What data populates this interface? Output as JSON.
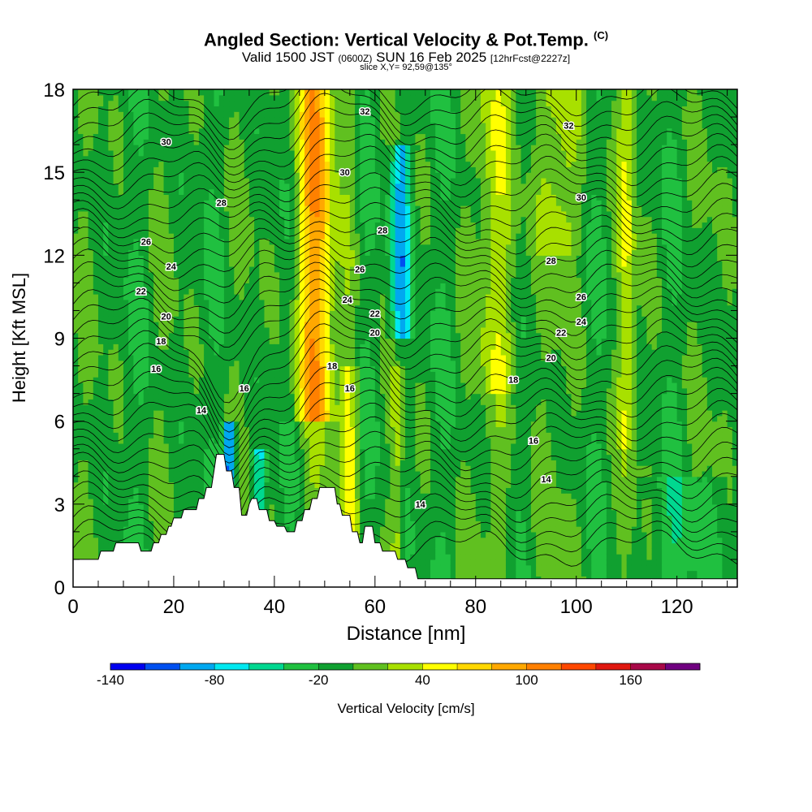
{
  "header": {
    "title": "Angled Section: Vertical Velocity & Pot.Temp.",
    "title_tag": "(C)",
    "subtitle_main": "Valid 1500 JST",
    "subtitle_utc": "(0600Z)",
    "subtitle_date": "SUN 16 Feb 2025",
    "subtitle_fcst": "[12hrFcst@2227z]",
    "slice": "slice X,Y= 92,59@135°"
  },
  "chart_data": {
    "type": "heatmap",
    "title": "Angled Section: Vertical Velocity & Pot.Temp.",
    "xlabel": "Distance [nm]",
    "ylabel": "Height [Kft MSL]",
    "xlim": [
      0,
      132
    ],
    "ylim": [
      0,
      18
    ],
    "x_ticks": [
      0,
      20,
      40,
      60,
      80,
      100,
      120
    ],
    "y_ticks": [
      0,
      3,
      6,
      9,
      12,
      15,
      18
    ],
    "colorbar": {
      "label": "Vertical Velocity [cm/s]",
      "tick_values": [
        -140,
        -80,
        -20,
        40,
        100,
        160
      ],
      "levels": [
        -140,
        -120,
        -100,
        -80,
        -60,
        -40,
        -20,
        0,
        20,
        40,
        60,
        80,
        100,
        120,
        140,
        160,
        180
      ],
      "colors": [
        "#0000f0",
        "#0050f0",
        "#00a8f0",
        "#00e8f0",
        "#00d890",
        "#20c040",
        "#10a030",
        "#60c020",
        "#a8e000",
        "#ffff00",
        "#ffd800",
        "#ffa800",
        "#ff8000",
        "#ff4800",
        "#e01810",
        "#a80848",
        "#700080"
      ]
    },
    "theta_contour_labels": [
      {
        "v": 30,
        "x": 18.5,
        "y": 16.1
      },
      {
        "v": 28,
        "x": 29.5,
        "y": 13.9
      },
      {
        "v": 26,
        "x": 14.5,
        "y": 12.5
      },
      {
        "v": 24,
        "x": 19.5,
        "y": 11.6
      },
      {
        "v": 22,
        "x": 13.5,
        "y": 10.7
      },
      {
        "v": 20,
        "x": 18.5,
        "y": 9.8
      },
      {
        "v": 18,
        "x": 17.5,
        "y": 8.9
      },
      {
        "v": 16,
        "x": 16.5,
        "y": 7.9
      },
      {
        "v": 14,
        "x": 25.5,
        "y": 6.4
      },
      {
        "v": 16,
        "x": 34,
        "y": 7.2
      },
      {
        "v": 32,
        "x": 58,
        "y": 17.2
      },
      {
        "v": 30,
        "x": 54,
        "y": 15.0
      },
      {
        "v": 28,
        "x": 61.5,
        "y": 12.9
      },
      {
        "v": 26,
        "x": 57,
        "y": 11.5
      },
      {
        "v": 24,
        "x": 54.5,
        "y": 10.4
      },
      {
        "v": 22,
        "x": 60,
        "y": 9.9
      },
      {
        "v": 20,
        "x": 60,
        "y": 9.2
      },
      {
        "v": 18,
        "x": 51.5,
        "y": 8.0
      },
      {
        "v": 16,
        "x": 55,
        "y": 7.2
      },
      {
        "v": 14,
        "x": 69,
        "y": 3.0
      },
      {
        "v": 32,
        "x": 98.5,
        "y": 16.7
      },
      {
        "v": 30,
        "x": 101,
        "y": 14.1
      },
      {
        "v": 28,
        "x": 95,
        "y": 11.8
      },
      {
        "v": 26,
        "x": 101,
        "y": 10.5
      },
      {
        "v": 24,
        "x": 101,
        "y": 9.6
      },
      {
        "v": 22,
        "x": 97,
        "y": 9.2
      },
      {
        "v": 20,
        "x": 95,
        "y": 8.3
      },
      {
        "v": 18,
        "x": 87.5,
        "y": 7.5
      },
      {
        "v": 16,
        "x": 91.5,
        "y": 5.3
      },
      {
        "v": 14,
        "x": 94,
        "y": 3.9
      }
    ],
    "terrain": [
      [
        0,
        1
      ],
      [
        5,
        1
      ],
      [
        5.5,
        1.3
      ],
      [
        8,
        1.3
      ],
      [
        8.5,
        1.6
      ],
      [
        13,
        1.6
      ],
      [
        13.5,
        1.3
      ],
      [
        15.5,
        1.3
      ],
      [
        16,
        1.6
      ],
      [
        17,
        1.6
      ],
      [
        17.5,
        1.9
      ],
      [
        18.5,
        1.9
      ],
      [
        19,
        2.2
      ],
      [
        19.5,
        2.2
      ],
      [
        20,
        2.5
      ],
      [
        21.5,
        2.5
      ],
      [
        22,
        2.8
      ],
      [
        24.5,
        2.8
      ],
      [
        25,
        3.2
      ],
      [
        26,
        3.2
      ],
      [
        26.5,
        3.6
      ],
      [
        27.5,
        3.6
      ],
      [
        28,
        4.2
      ],
      [
        28.5,
        4.8
      ],
      [
        30,
        4.8
      ],
      [
        30.5,
        4.2
      ],
      [
        31.5,
        4.2
      ],
      [
        32,
        3.6
      ],
      [
        33,
        3.6
      ],
      [
        33.5,
        2.6
      ],
      [
        34.5,
        2.6
      ],
      [
        35,
        3.0
      ],
      [
        35.5,
        3.2
      ],
      [
        36.5,
        3.2
      ],
      [
        37,
        2.8
      ],
      [
        38.5,
        2.8
      ],
      [
        39,
        2.4
      ],
      [
        40,
        2.4
      ],
      [
        40.5,
        2.2
      ],
      [
        42,
        2.2
      ],
      [
        42.5,
        2.0
      ],
      [
        44,
        2.0
      ],
      [
        44.5,
        2.4
      ],
      [
        45.5,
        2.4
      ],
      [
        46,
        2.8
      ],
      [
        47,
        2.8
      ],
      [
        47.5,
        3.2
      ],
      [
        48.5,
        3.2
      ],
      [
        49,
        3.6
      ],
      [
        52,
        3.6
      ],
      [
        52.5,
        3.0
      ],
      [
        53,
        3.0
      ],
      [
        53.5,
        2.6
      ],
      [
        55,
        2.6
      ],
      [
        55.5,
        2.0
      ],
      [
        56.5,
        2.0
      ],
      [
        57,
        1.6
      ],
      [
        57.5,
        1.6
      ],
      [
        58,
        2.2
      ],
      [
        59.5,
        2.2
      ],
      [
        60,
        1.6
      ],
      [
        61,
        1.6
      ],
      [
        61.5,
        1.3
      ],
      [
        64,
        1.3
      ],
      [
        64.5,
        1.0
      ],
      [
        66,
        1.0
      ],
      [
        66.5,
        0.7
      ],
      [
        68,
        0.7
      ],
      [
        68.5,
        0.3
      ],
      [
        132,
        0.3
      ]
    ]
  }
}
